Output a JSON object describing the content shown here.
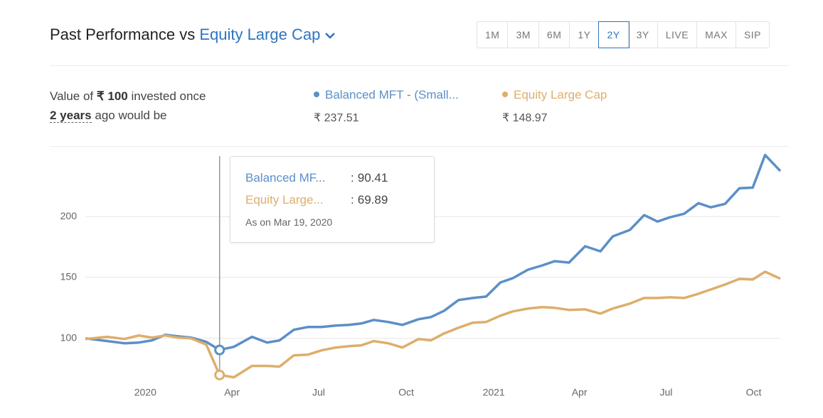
{
  "header": {
    "title": "Past Performance vs",
    "benchmark": "Equity Large Cap",
    "periods": [
      "1M",
      "3M",
      "6M",
      "1Y",
      "2Y",
      "3Y",
      "LIVE",
      "MAX",
      "SIP"
    ],
    "selected_period": "2Y"
  },
  "summary": {
    "line1_prefix": "Value of",
    "amount": "₹ 100",
    "line1_suffix": "invested once",
    "duration": "2 years",
    "line2_suffix": "ago would be"
  },
  "chart_data": {
    "type": "line",
    "x": [
      "2019-10-30",
      "2019-11-22",
      "2019-12-10",
      "2019-12-25",
      "2020-01-08",
      "2020-01-22",
      "2020-02-04",
      "2020-02-18",
      "2020-03-05",
      "2020-03-19",
      "2020-04-03",
      "2020-04-22",
      "2020-05-08",
      "2020-05-21",
      "2020-06-05",
      "2020-06-20",
      "2020-07-04",
      "2020-07-19",
      "2020-08-02",
      "2020-08-15",
      "2020-08-28",
      "2020-09-12",
      "2020-09-27",
      "2020-10-14",
      "2020-10-27",
      "2020-11-10",
      "2020-11-25",
      "2020-12-10",
      "2020-12-24",
      "2021-01-08",
      "2021-01-21",
      "2021-02-06",
      "2021-02-21",
      "2021-03-06",
      "2021-03-21",
      "2021-04-07",
      "2021-04-23",
      "2021-05-06",
      "2021-05-24",
      "2021-06-08",
      "2021-06-22",
      "2021-07-05",
      "2021-07-20",
      "2021-08-04",
      "2021-08-17",
      "2021-09-01",
      "2021-09-16",
      "2021-09-30",
      "2021-10-13",
      "2021-10-29"
    ],
    "xlim": [
      "2019-10-30",
      "2021-10-29"
    ],
    "xticks": [
      {
        "value": "2020-01-01",
        "label": "2020"
      },
      {
        "value": "2020-04-01",
        "label": "Apr"
      },
      {
        "value": "2020-07-01",
        "label": "Jul"
      },
      {
        "value": "2020-10-01",
        "label": "Oct"
      },
      {
        "value": "2021-01-01",
        "label": "2021"
      },
      {
        "value": "2021-04-01",
        "label": "Apr"
      },
      {
        "value": "2021-07-01",
        "label": "Jul"
      },
      {
        "value": "2021-10-01",
        "label": "Oct"
      }
    ],
    "ylim": [
      66,
      252
    ],
    "yticks": [
      100,
      150,
      200
    ],
    "grid": true,
    "series": [
      {
        "name": "Balanced MFT - (Small...",
        "short_name": "Balanced MF...",
        "color": "#5b8fc8",
        "final_label": "₹ 237.51",
        "values": [
          100,
          97.7,
          95.9,
          96.5,
          98.3,
          102.9,
          101.7,
          100.6,
          97.1,
          90.41,
          93.0,
          101.2,
          96.5,
          98.3,
          107.0,
          109.3,
          109.3,
          110.5,
          111.0,
          112.2,
          115.1,
          113.4,
          111.0,
          115.7,
          117.4,
          122.7,
          131.4,
          133.1,
          134.3,
          145.9,
          149.4,
          156.4,
          159.9,
          163.4,
          162.2,
          175.6,
          171.5,
          183.7,
          189.0,
          201.2,
          195.9,
          199.4,
          202.3,
          211.0,
          207.6,
          210.5,
          223.3,
          223.8,
          250.6,
          237.51
        ]
      },
      {
        "name": "Equity Large Cap",
        "short_name": "Equity Large...",
        "color": "#ddae6b",
        "final_label": "₹ 148.97",
        "values": [
          99.4,
          101.2,
          99.4,
          102.3,
          100.6,
          102.3,
          100.6,
          100,
          94.8,
          69.89,
          68.0,
          77.3,
          77.3,
          76.7,
          86.0,
          86.6,
          90.1,
          92.4,
          93.6,
          94.2,
          97.7,
          95.9,
          92.4,
          99.4,
          98.3,
          104.1,
          108.7,
          112.8,
          113.4,
          118.6,
          122.1,
          124.4,
          125.6,
          125.0,
          123.3,
          123.8,
          120.3,
          124.4,
          128.5,
          133.1,
          133.1,
          133.7,
          133.1,
          136.6,
          140.1,
          144.2,
          148.8,
          148.3,
          154.7,
          148.97
        ]
      }
    ],
    "tooltip": {
      "x": "2020-03-19",
      "separator": ":",
      "date_label": "As on Mar 19, 2020"
    }
  }
}
